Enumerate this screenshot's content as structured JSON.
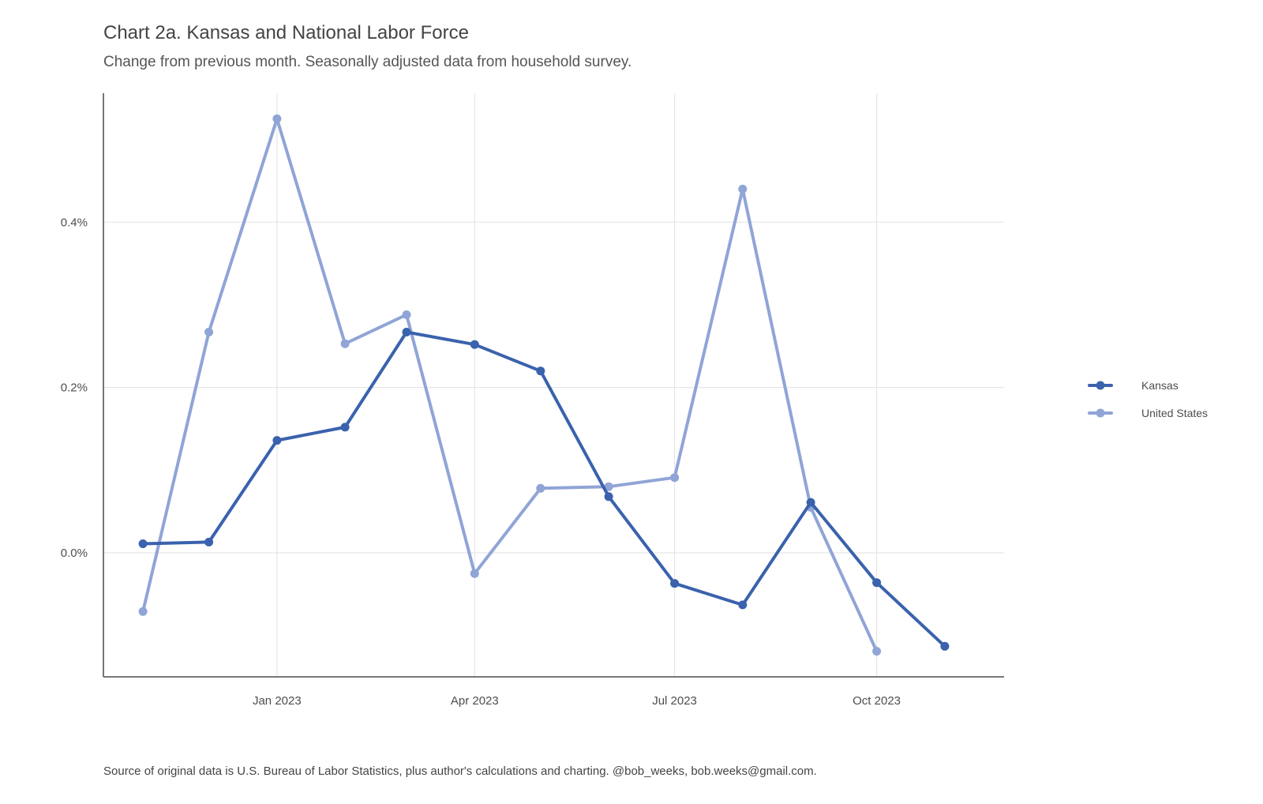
{
  "chart_data": {
    "type": "line",
    "title": "Chart 2a. Kansas and National Labor Force",
    "subtitle": "Change from previous month. Seasonally adjusted data from household survey.",
    "caption": "Source of original data is U.S. Bureau of Labor Statistics, plus author's calculations and charting. @bob_weeks, bob.weeks@gmail.com.",
    "xlabel": "",
    "ylabel": "",
    "x": [
      "2022-11-01",
      "2022-12-01",
      "2023-01-01",
      "2023-02-01",
      "2023-03-01",
      "2023-04-01",
      "2023-05-01",
      "2023-06-01",
      "2023-07-01",
      "2023-08-01",
      "2023-09-01",
      "2023-10-01",
      "2023-11-01"
    ],
    "x_ticks": [
      "2023-01-01",
      "2023-04-01",
      "2023-07-01",
      "2023-10-01"
    ],
    "x_tick_labels": [
      "Jan 2023",
      "Apr 2023",
      "Jul 2023",
      "Oct 2023"
    ],
    "y_ticks": [
      0.0,
      0.2,
      0.4
    ],
    "y_tick_labels": [
      "0.0%",
      "0.2%",
      "0.4%"
    ],
    "xlim": [
      "2022-10-14",
      "2023-11-28"
    ],
    "ylim": [
      -0.15,
      0.556
    ],
    "grid": true,
    "legend_position": "right",
    "series": [
      {
        "name": "Kansas",
        "color": "#3a62ad",
        "values": [
          0.011,
          0.013,
          0.136,
          0.152,
          0.267,
          0.252,
          0.22,
          0.068,
          -0.037,
          -0.063,
          0.061,
          -0.036,
          -0.113
        ]
      },
      {
        "name": "United States",
        "color": "#90a4d6",
        "values": [
          -0.071,
          0.267,
          0.525,
          0.253,
          0.288,
          -0.025,
          0.078,
          0.08,
          0.091,
          0.44,
          0.055,
          -0.119,
          null
        ]
      }
    ]
  }
}
